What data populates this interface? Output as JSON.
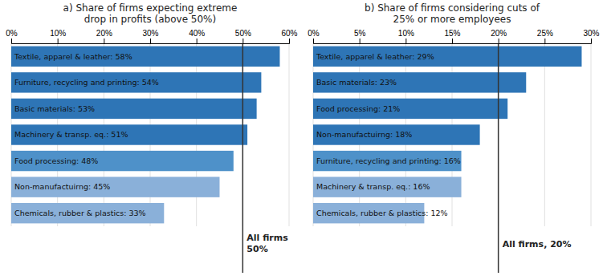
{
  "chart_data": [
    {
      "type": "bar",
      "orientation": "horizontal",
      "title": "a) Share of firms expecting extreme\ndrop in profits (above 50%)",
      "categories": [
        "Textile, apparel & leather: 58%",
        "Furniture, recycling and printing: 54%",
        "Basic materials: 53%",
        "Machinery & transp. eq.: 51%",
        "Food processing: 48%",
        "Non-manufactuirng: 45%",
        "Chemicals, rubber & plastics: 33%"
      ],
      "values": [
        58,
        54,
        53,
        51,
        48,
        45,
        33
      ],
      "colors": [
        "#2e75b6",
        "#2e75b6",
        "#2e75b6",
        "#2e75b6",
        "#4e91c9",
        "#8ab0d9",
        "#8ab0d9"
      ],
      "xlim": [
        0,
        60
      ],
      "xticks": [
        {
          "value": 0,
          "label": "0%"
        },
        {
          "value": 10,
          "label": "10%"
        },
        {
          "value": 20,
          "label": "20%"
        },
        {
          "value": 30,
          "label": "30%"
        },
        {
          "value": 40,
          "label": "40%"
        },
        {
          "value": 50,
          "label": "50%"
        },
        {
          "value": 60,
          "label": "60%"
        }
      ],
      "grid": true,
      "annotations": [
        {
          "x": 50,
          "text": [
            "All firms",
            "50%"
          ]
        }
      ]
    },
    {
      "type": "bar",
      "orientation": "horizontal",
      "title": "b) Share of firms considering cuts of\n25% or more employees",
      "categories": [
        "Textile, apparel & leather: 29%",
        "Basic materials: 23%",
        "Food processing: 21%",
        "Non-manufactuirng: 18%",
        "Furniture, recycling and printing: 16%",
        "Machinery & transp. eq.: 16%",
        "Chemicals, rubber & plastics: 12%"
      ],
      "values": [
        29,
        23,
        21,
        18,
        16,
        16,
        12
      ],
      "colors": [
        "#2e75b6",
        "#2e75b6",
        "#2e75b6",
        "#2e75b6",
        "#4e91c9",
        "#8ab0d9",
        "#8ab0d9"
      ],
      "xlim": [
        0,
        30
      ],
      "xticks": [
        {
          "value": 0,
          "label": "0%"
        },
        {
          "value": 5,
          "label": "5%"
        },
        {
          "value": 10,
          "label": "10%"
        },
        {
          "value": 15,
          "label": "15%"
        },
        {
          "value": 20,
          "label": "20%"
        },
        {
          "value": 25,
          "label": "25%"
        },
        {
          "value": 30,
          "label": "30%"
        }
      ],
      "grid": true,
      "annotations": [
        {
          "x": 20,
          "text": [
            "All firms, 20%"
          ]
        }
      ]
    }
  ]
}
